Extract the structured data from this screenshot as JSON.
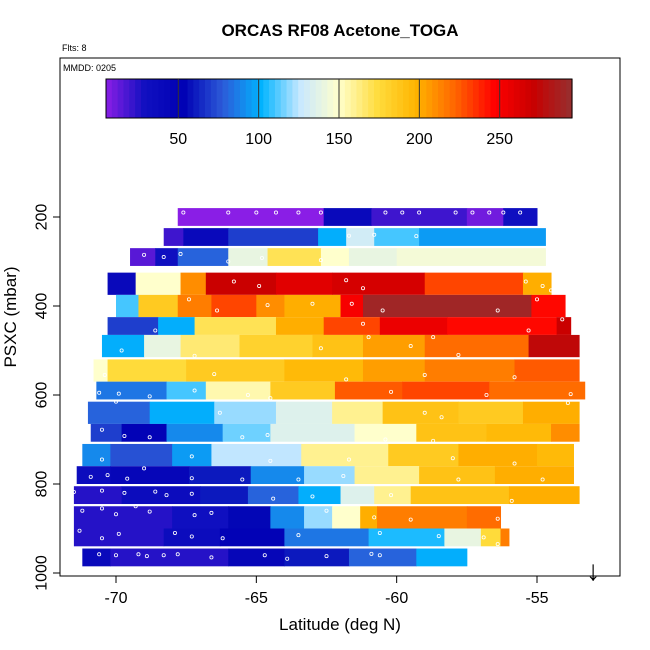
{
  "chart_data": {
    "type": "heatmap",
    "title": "ORCAS RF08 Acetone_TOGA",
    "notes": [
      "Flts: 8",
      "MMDD: 0205"
    ],
    "xlabel": "Latitude (deg N)",
    "ylabel": "PSXC (mbar)",
    "xlim": [
      -72,
      -52
    ],
    "ylim": [
      1000,
      100
    ],
    "x_ticks": [
      -70,
      -65,
      -60,
      -55
    ],
    "x_tick_labels": [
      "-70",
      "-65",
      "-60",
      "-55"
    ],
    "y_ticks": [
      200,
      400,
      600,
      800,
      1000
    ],
    "y_tick_labels": [
      "200",
      "400",
      "600",
      "800",
      "1000"
    ],
    "colorbar": {
      "range": [
        5,
        295
      ],
      "ticks": [
        50,
        100,
        150,
        200,
        250
      ],
      "tick_labels": [
        "50",
        "100",
        "150",
        "200",
        "250"
      ],
      "colors": [
        "#8a1ee6",
        "#1010c0",
        "#0000b4",
        "#2c5ad8",
        "#00b4ff",
        "#c8e8ff",
        "#ffffcc",
        "#ffdc3c",
        "#ffb400",
        "#ff6400",
        "#ff0000",
        "#c80000",
        "#963030"
      ]
    },
    "rows": [
      {
        "p": 200,
        "pmin": 180,
        "pmax": 220,
        "segments": [
          [
            -67.8,
            -62.6,
            5
          ],
          [
            -62.6,
            -60.9,
            40
          ],
          [
            -60.9,
            -57.5,
            20
          ],
          [
            -57.5,
            -56.2,
            10
          ],
          [
            -56.2,
            -55.0,
            30
          ]
        ]
      },
      {
        "p": 245,
        "pmin": 225,
        "pmax": 265,
        "segments": [
          [
            -68.3,
            -67.6,
            20
          ],
          [
            -67.6,
            -66.0,
            40
          ],
          [
            -66.0,
            -62.8,
            70
          ],
          [
            -62.8,
            -61.8,
            100
          ],
          [
            -61.8,
            -60.8,
            130
          ],
          [
            -60.8,
            -59.2,
            110
          ],
          [
            -59.2,
            -54.7,
            95
          ]
        ]
      },
      {
        "p": 290,
        "pmin": 270,
        "pmax": 310,
        "segments": [
          [
            -69.5,
            -68.6,
            15
          ],
          [
            -68.6,
            -67.8,
            30
          ],
          [
            -67.8,
            -66.0,
            80
          ],
          [
            -66.0,
            -64.6,
            140
          ],
          [
            -64.6,
            -62.7,
            170
          ],
          [
            -62.7,
            -61.7,
            150
          ],
          [
            -61.7,
            -60.0,
            140
          ],
          [
            -60.0,
            -54.7,
            145
          ]
        ]
      },
      {
        "p": 350,
        "pmin": 325,
        "pmax": 375,
        "segments": [
          [
            -70.3,
            -69.3,
            40
          ],
          [
            -69.3,
            -67.7,
            150
          ],
          [
            -67.7,
            -66.8,
            210
          ],
          [
            -66.8,
            -64.3,
            270
          ],
          [
            -64.3,
            -62.3,
            260
          ],
          [
            -62.3,
            -59.0,
            265
          ],
          [
            -59.0,
            -55.5,
            230
          ],
          [
            -55.5,
            -54.5,
            200
          ]
        ]
      },
      {
        "p": 400,
        "pmin": 375,
        "pmax": 425,
        "segments": [
          [
            -70.0,
            -69.2,
            110
          ],
          [
            -69.2,
            -67.8,
            185
          ],
          [
            -67.8,
            -66.6,
            215
          ],
          [
            -66.6,
            -65.0,
            230
          ],
          [
            -65.0,
            -64.0,
            210
          ],
          [
            -64.0,
            -62.0,
            200
          ],
          [
            -62.0,
            -61.2,
            250
          ],
          [
            -61.2,
            -55.2,
            290
          ],
          [
            -55.2,
            -54.0,
            245
          ]
        ]
      },
      {
        "p": 445,
        "pmin": 425,
        "pmax": 465,
        "segments": [
          [
            -70.3,
            -68.5,
            70
          ],
          [
            -68.5,
            -67.2,
            100
          ],
          [
            -67.2,
            -64.3,
            170
          ],
          [
            -64.3,
            -62.6,
            200
          ],
          [
            -62.6,
            -60.6,
            230
          ],
          [
            -60.6,
            -58.2,
            255
          ],
          [
            -58.2,
            -54.3,
            245
          ],
          [
            -54.3,
            -53.8,
            270
          ]
        ]
      },
      {
        "p": 490,
        "pmin": 465,
        "pmax": 515,
        "segments": [
          [
            -70.5,
            -69.0,
            100
          ],
          [
            -69.0,
            -67.7,
            140
          ],
          [
            -67.7,
            -65.6,
            165
          ],
          [
            -65.6,
            -63.0,
            180
          ],
          [
            -63.0,
            -61.2,
            190
          ],
          [
            -61.2,
            -59.0,
            205
          ],
          [
            -59.0,
            -55.3,
            220
          ],
          [
            -55.3,
            -53.5,
            275
          ]
        ]
      },
      {
        "p": 545,
        "pmin": 520,
        "pmax": 570,
        "segments": [
          [
            -70.8,
            -70.3,
            150
          ],
          [
            -70.3,
            -67.5,
            175
          ],
          [
            -67.5,
            -64.0,
            185
          ],
          [
            -64.0,
            -61.2,
            195
          ],
          [
            -61.2,
            -59.0,
            205
          ],
          [
            -59.0,
            -55.8,
            215
          ],
          [
            -55.8,
            -53.5,
            225
          ]
        ]
      },
      {
        "p": 590,
        "pmin": 570,
        "pmax": 610,
        "segments": [
          [
            -70.7,
            -68.2,
            85
          ],
          [
            -68.2,
            -66.8,
            110
          ],
          [
            -66.8,
            -64.5,
            155
          ],
          [
            -64.5,
            -62.2,
            185
          ],
          [
            -62.2,
            -59.8,
            225
          ],
          [
            -59.8,
            -56.7,
            230
          ],
          [
            -56.7,
            -53.3,
            220
          ]
        ]
      },
      {
        "p": 640,
        "pmin": 615,
        "pmax": 665,
        "segments": [
          [
            -71.0,
            -68.8,
            80
          ],
          [
            -68.8,
            -66.5,
            100
          ],
          [
            -66.5,
            -64.3,
            120
          ],
          [
            -64.3,
            -62.3,
            135
          ],
          [
            -62.3,
            -60.5,
            160
          ],
          [
            -60.5,
            -57.8,
            190
          ],
          [
            -57.8,
            -55.5,
            185
          ],
          [
            -55.5,
            -53.5,
            200
          ]
        ]
      },
      {
        "p": 685,
        "pmin": 665,
        "pmax": 705,
        "segments": [
          [
            -70.9,
            -69.8,
            70
          ],
          [
            -69.8,
            -68.2,
            50
          ],
          [
            -68.2,
            -66.2,
            90
          ],
          [
            -66.2,
            -64.5,
            115
          ],
          [
            -64.5,
            -61.5,
            135
          ],
          [
            -61.5,
            -59.3,
            150
          ],
          [
            -59.3,
            -56.8,
            190
          ],
          [
            -56.8,
            -54.5,
            195
          ],
          [
            -54.5,
            -53.5,
            210
          ]
        ]
      },
      {
        "p": 735,
        "pmin": 710,
        "pmax": 760,
        "segments": [
          [
            -71.2,
            -70.2,
            90
          ],
          [
            -70.2,
            -68.0,
            75
          ],
          [
            -68.0,
            -66.6,
            95
          ],
          [
            -66.6,
            -63.4,
            125
          ],
          [
            -63.4,
            -60.3,
            160
          ],
          [
            -60.3,
            -57.8,
            185
          ],
          [
            -57.8,
            -55.0,
            200
          ],
          [
            -55.0,
            -53.7,
            195
          ]
        ]
      },
      {
        "p": 780,
        "pmin": 760,
        "pmax": 800,
        "segments": [
          [
            -71.4,
            -70.2,
            35
          ],
          [
            -70.2,
            -67.4,
            45
          ],
          [
            -67.4,
            -65.2,
            60
          ],
          [
            -65.2,
            -63.3,
            90
          ],
          [
            -63.3,
            -61.5,
            120
          ],
          [
            -61.5,
            -59.2,
            160
          ],
          [
            -59.2,
            -56.5,
            190
          ],
          [
            -56.5,
            -53.7,
            200
          ]
        ]
      },
      {
        "p": 825,
        "pmin": 805,
        "pmax": 845,
        "segments": [
          [
            -71.5,
            -69.8,
            25
          ],
          [
            -69.8,
            -67.0,
            35
          ],
          [
            -67.0,
            -65.3,
            60
          ],
          [
            -65.3,
            -63.5,
            80
          ],
          [
            -63.5,
            -62.0,
            100
          ],
          [
            -62.0,
            -60.8,
            135
          ],
          [
            -60.8,
            -59.5,
            160
          ],
          [
            -59.5,
            -56.0,
            190
          ],
          [
            -56.0,
            -53.5,
            200
          ]
        ]
      },
      {
        "p": 875,
        "pmin": 850,
        "pmax": 900,
        "segments": [
          [
            -71.5,
            -68.0,
            25
          ],
          [
            -68.0,
            -66.0,
            30
          ],
          [
            -66.0,
            -64.5,
            55
          ],
          [
            -64.5,
            -63.3,
            90
          ],
          [
            -63.3,
            -62.3,
            120
          ],
          [
            -62.3,
            -61.3,
            150
          ],
          [
            -61.3,
            -60.7,
            200
          ],
          [
            -60.7,
            -57.5,
            215
          ],
          [
            -57.5,
            -56.3,
            220
          ]
        ]
      },
      {
        "p": 920,
        "pmin": 900,
        "pmax": 940,
        "segments": [
          [
            -71.5,
            -68.3,
            25
          ],
          [
            -68.3,
            -66.3,
            35
          ],
          [
            -66.3,
            -64.0,
            50
          ],
          [
            -64.0,
            -61.0,
            85
          ],
          [
            -61.0,
            -58.3,
            105
          ],
          [
            -58.3,
            -57.0,
            140
          ],
          [
            -57.0,
            -56.3,
            175
          ],
          [
            -56.3,
            -56.0,
            215
          ]
        ]
      },
      {
        "p": 965,
        "pmin": 945,
        "pmax": 985,
        "segments": [
          [
            -71.2,
            -70.2,
            40
          ],
          [
            -70.2,
            -66.0,
            25
          ],
          [
            -66.0,
            -64.0,
            45
          ],
          [
            -64.0,
            -61.7,
            60
          ],
          [
            -61.7,
            -59.3,
            80
          ],
          [
            -59.3,
            -57.5,
            100
          ]
        ]
      }
    ],
    "points": [
      [
        -67.6,
        190
      ],
      [
        -66.0,
        190
      ],
      [
        -65.0,
        190
      ],
      [
        -64.3,
        190
      ],
      [
        -63.5,
        190
      ],
      [
        -62.7,
        190
      ],
      [
        -60.4,
        190
      ],
      [
        -59.8,
        190
      ],
      [
        -59.2,
        190
      ],
      [
        -57.9,
        190
      ],
      [
        -57.3,
        190
      ],
      [
        -56.7,
        190
      ],
      [
        -56.2,
        190
      ],
      [
        -55.6,
        190
      ],
      [
        -61.7,
        242
      ],
      [
        -60.8,
        240
      ],
      [
        -59.3,
        243
      ],
      [
        -69.0,
        285
      ],
      [
        -68.3,
        290
      ],
      [
        -67.7,
        283
      ],
      [
        -66.0,
        300
      ],
      [
        -64.8,
        292
      ],
      [
        -62.7,
        297
      ],
      [
        -65.8,
        345
      ],
      [
        -64.9,
        355
      ],
      [
        -61.8,
        342
      ],
      [
        -61.2,
        360
      ],
      [
        -55.4,
        345
      ],
      [
        -54.8,
        355
      ],
      [
        -54.5,
        365
      ],
      [
        -67.4,
        385
      ],
      [
        -66.4,
        410
      ],
      [
        -64.6,
        398
      ],
      [
        -63.0,
        395
      ],
      [
        -61.6,
        395
      ],
      [
        -60.5,
        410
      ],
      [
        -56.4,
        410
      ],
      [
        -55.0,
        385
      ],
      [
        -68.6,
        455
      ],
      [
        -61.2,
        440
      ],
      [
        -58.7,
        470
      ],
      [
        -55.3,
        455
      ],
      [
        -54.1,
        430
      ],
      [
        -69.8,
        500
      ],
      [
        -67.2,
        512
      ],
      [
        -62.7,
        495
      ],
      [
        -61.0,
        470
      ],
      [
        -59.5,
        490
      ],
      [
        -57.8,
        510
      ],
      [
        -70.4,
        555
      ],
      [
        -66.5,
        553
      ],
      [
        -61.8,
        565
      ],
      [
        -59.0,
        555
      ],
      [
        -55.8,
        560
      ],
      [
        -70.6,
        595
      ],
      [
        -69.9,
        597
      ],
      [
        -68.8,
        603
      ],
      [
        -67.2,
        590
      ],
      [
        -65.3,
        600
      ],
      [
        -64.5,
        607
      ],
      [
        -60.2,
        593
      ],
      [
        -56.8,
        600
      ],
      [
        -53.8,
        598
      ],
      [
        -53.9,
        618
      ],
      [
        -70.0,
        615
      ],
      [
        -66.3,
        640
      ],
      [
        -59.0,
        640
      ],
      [
        -58.4,
        650
      ],
      [
        -70.5,
        678
      ],
      [
        -69.7,
        692
      ],
      [
        -68.8,
        695
      ],
      [
        -65.5,
        695
      ],
      [
        -64.6,
        690
      ],
      [
        -60.4,
        700
      ],
      [
        -58.7,
        703
      ],
      [
        -70.5,
        745
      ],
      [
        -69.0,
        765
      ],
      [
        -67.3,
        738
      ],
      [
        -64.5,
        748
      ],
      [
        -61.7,
        745
      ],
      [
        -58.0,
        742
      ],
      [
        -55.8,
        754
      ],
      [
        -70.9,
        784
      ],
      [
        -70.3,
        780
      ],
      [
        -69.6,
        788
      ],
      [
        -67.3,
        787
      ],
      [
        -65.5,
        790
      ],
      [
        -63.5,
        790
      ],
      [
        -61.9,
        782
      ],
      [
        -57.8,
        790
      ],
      [
        -54.8,
        790
      ],
      [
        -71.5,
        818
      ],
      [
        -70.5,
        815
      ],
      [
        -69.7,
        820
      ],
      [
        -68.6,
        817
      ],
      [
        -68.2,
        825
      ],
      [
        -67.3,
        822
      ],
      [
        -64.4,
        833
      ],
      [
        -63.0,
        828
      ],
      [
        -60.2,
        825
      ],
      [
        -55.9,
        838
      ],
      [
        -71.2,
        860
      ],
      [
        -70.5,
        855
      ],
      [
        -70.0,
        868
      ],
      [
        -69.3,
        850
      ],
      [
        -68.8,
        862
      ],
      [
        -67.2,
        870
      ],
      [
        -66.6,
        865
      ],
      [
        -62.5,
        860
      ],
      [
        -60.8,
        875
      ],
      [
        -59.5,
        880
      ],
      [
        -56.4,
        878
      ],
      [
        -71.3,
        905
      ],
      [
        -70.5,
        922
      ],
      [
        -69.9,
        912
      ],
      [
        -67.9,
        910
      ],
      [
        -67.3,
        918
      ],
      [
        -66.2,
        922
      ],
      [
        -63.5,
        915
      ],
      [
        -60.6,
        910
      ],
      [
        -58.5,
        917
      ],
      [
        -56.9,
        920
      ],
      [
        -56.4,
        935
      ],
      [
        -71.3,
        950
      ],
      [
        -70.6,
        958
      ],
      [
        -70.0,
        960
      ],
      [
        -69.2,
        958
      ],
      [
        -68.9,
        962
      ],
      [
        -68.3,
        960
      ],
      [
        -67.8,
        958
      ],
      [
        -66.6,
        965
      ],
      [
        -64.7,
        960
      ],
      [
        -63.9,
        968
      ],
      [
        -62.5,
        962
      ],
      [
        -60.9,
        957
      ],
      [
        -60.6,
        960
      ]
    ],
    "arrow_marker": {
      "x": -53.0,
      "label": "↓"
    }
  }
}
